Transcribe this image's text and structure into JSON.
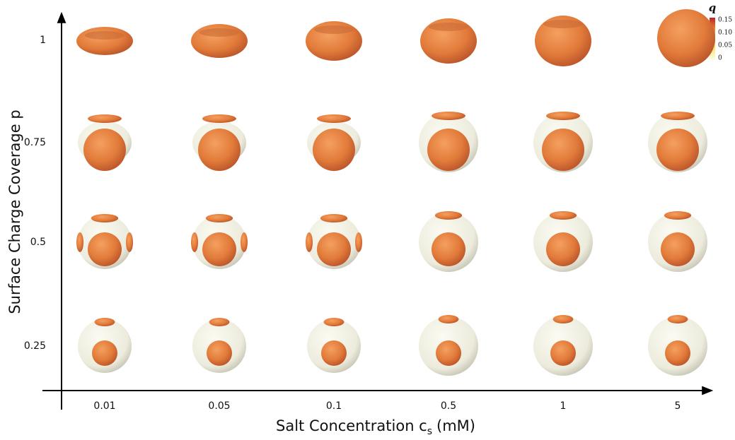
{
  "axes": {
    "x_title": "Salt Concentration c",
    "x_title_subscript": "s",
    "x_title_unit": "(mM)",
    "y_title": "Surface Charge Coverage p",
    "x_labels": [
      "0.01",
      "0.05",
      "0.1",
      "0.5",
      "1",
      "5"
    ],
    "y_labels": [
      "1",
      "0.75",
      "0.5",
      "0.25"
    ]
  },
  "colorbar": {
    "label": "q",
    "ticks": [
      "0.15",
      "0.10",
      "0.05",
      "0"
    ]
  }
}
